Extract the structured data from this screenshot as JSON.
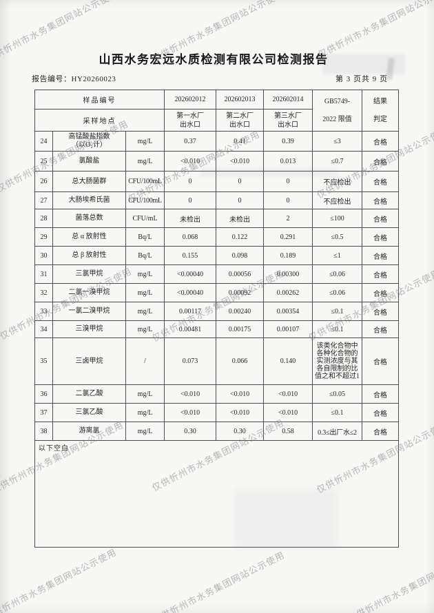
{
  "watermark": {
    "text": "仅供忻州市水务集团网站公示使用"
  },
  "header": {
    "title": "山西水务宏远水质检测有限公司检测报告",
    "report_no_label": "报告编号：",
    "report_no": "HY20260023",
    "page_info": "第 3 页共 9 页"
  },
  "table": {
    "header": {
      "sample_no_label": "样品编号",
      "location_label": "采样地点",
      "sample_ids": [
        "202602012",
        "202602013",
        "202602014"
      ],
      "locations": [
        "第一水厂\n出水口",
        "第二水厂\n出水口",
        "第三水厂\n出水口"
      ],
      "limit_label": "GB5749-\n2022 限值",
      "result_label": "结果\n判定"
    },
    "rows": [
      {
        "num": "24",
        "name": "高锰酸盐指数\n（以O₂计）",
        "unit": "mg/L",
        "v1": "0.37",
        "v2": "0.41",
        "v3": "0.39",
        "limit": "≤3",
        "result": "合格"
      },
      {
        "num": "25",
        "name": "氯酸盐",
        "unit": "mg/L",
        "v1": "<0.010",
        "v2": "<0.010",
        "v3": "0.013",
        "limit": "≤0.7",
        "result": "合格"
      },
      {
        "num": "26",
        "name": "总大肠菌群",
        "unit": "CFU/100mL",
        "v1": "0",
        "v2": "0",
        "v3": "0",
        "limit": "不应检出",
        "result": "合格"
      },
      {
        "num": "27",
        "name": "大肠埃希氏菌",
        "unit": "CFU/100mL",
        "v1": "0",
        "v2": "0",
        "v3": "0",
        "limit": "不应检出",
        "result": "合格"
      },
      {
        "num": "28",
        "name": "菌落总数",
        "unit": "CFU/mL",
        "v1": "未检出",
        "v2": "未检出",
        "v3": "2",
        "limit": "≤100",
        "result": "合格"
      },
      {
        "num": "29",
        "name": "总 α 放射性",
        "unit": "Bq/L",
        "v1": "0.068",
        "v2": "0.122",
        "v3": "0.291",
        "limit": "≤0.5",
        "result": "合格"
      },
      {
        "num": "30",
        "name": "总 β 放射性",
        "unit": "Bq/L",
        "v1": "0.155",
        "v2": "0.098",
        "v3": "0.189",
        "limit": "≤1",
        "result": "合格"
      },
      {
        "num": "31",
        "name": "三氯甲烷",
        "unit": "mg/L",
        "v1": "<0.00040",
        "v2": "0.00056",
        "v3": "0.00300",
        "limit": "≤0.06",
        "result": "合格"
      },
      {
        "num": "32",
        "name": "二氯一溴甲烷",
        "unit": "mg/L",
        "v1": "<0.00040",
        "v2": "0.00092",
        "v3": "0.00262",
        "limit": "≤0.06",
        "result": "合格"
      },
      {
        "num": "33",
        "name": "一氯二溴甲烷",
        "unit": "mg/L",
        "v1": "0.00117",
        "v2": "0.00240",
        "v3": "0.00354",
        "limit": "≤0.1",
        "result": "合格"
      },
      {
        "num": "34",
        "name": "三溴甲烷",
        "unit": "mg/L",
        "v1": "0.00481",
        "v2": "0.00175",
        "v3": "0.00107",
        "limit": "≤0.1",
        "result": "合格"
      },
      {
        "num": "35",
        "name": "三卤甲烷",
        "unit": "/",
        "v1": "0.073",
        "v2": "0.066",
        "v3": "0.140",
        "limit": "该类化合物中\n各种化合物的\n实测浓度与其\n各自限制的比\n值之和不超过1",
        "result": "合格"
      },
      {
        "num": "36",
        "name": "二氯乙酸",
        "unit": "mg/L",
        "v1": "<0.010",
        "v2": "<0.010",
        "v3": "<0.010",
        "limit": "≤0.05",
        "result": "合格"
      },
      {
        "num": "37",
        "name": "三氯乙酸",
        "unit": "mg/L",
        "v1": "<0.010",
        "v2": "<0.010",
        "v3": "<0.010",
        "limit": "≤0.1",
        "result": "合格"
      },
      {
        "num": "38",
        "name": "游离氯",
        "unit": "mg/L",
        "v1": "0.30",
        "v2": "0.30",
        "v3": "0.58",
        "limit": "0.3≤出厂水≤2",
        "result": "合格"
      }
    ],
    "footer_note": "以下空白"
  }
}
